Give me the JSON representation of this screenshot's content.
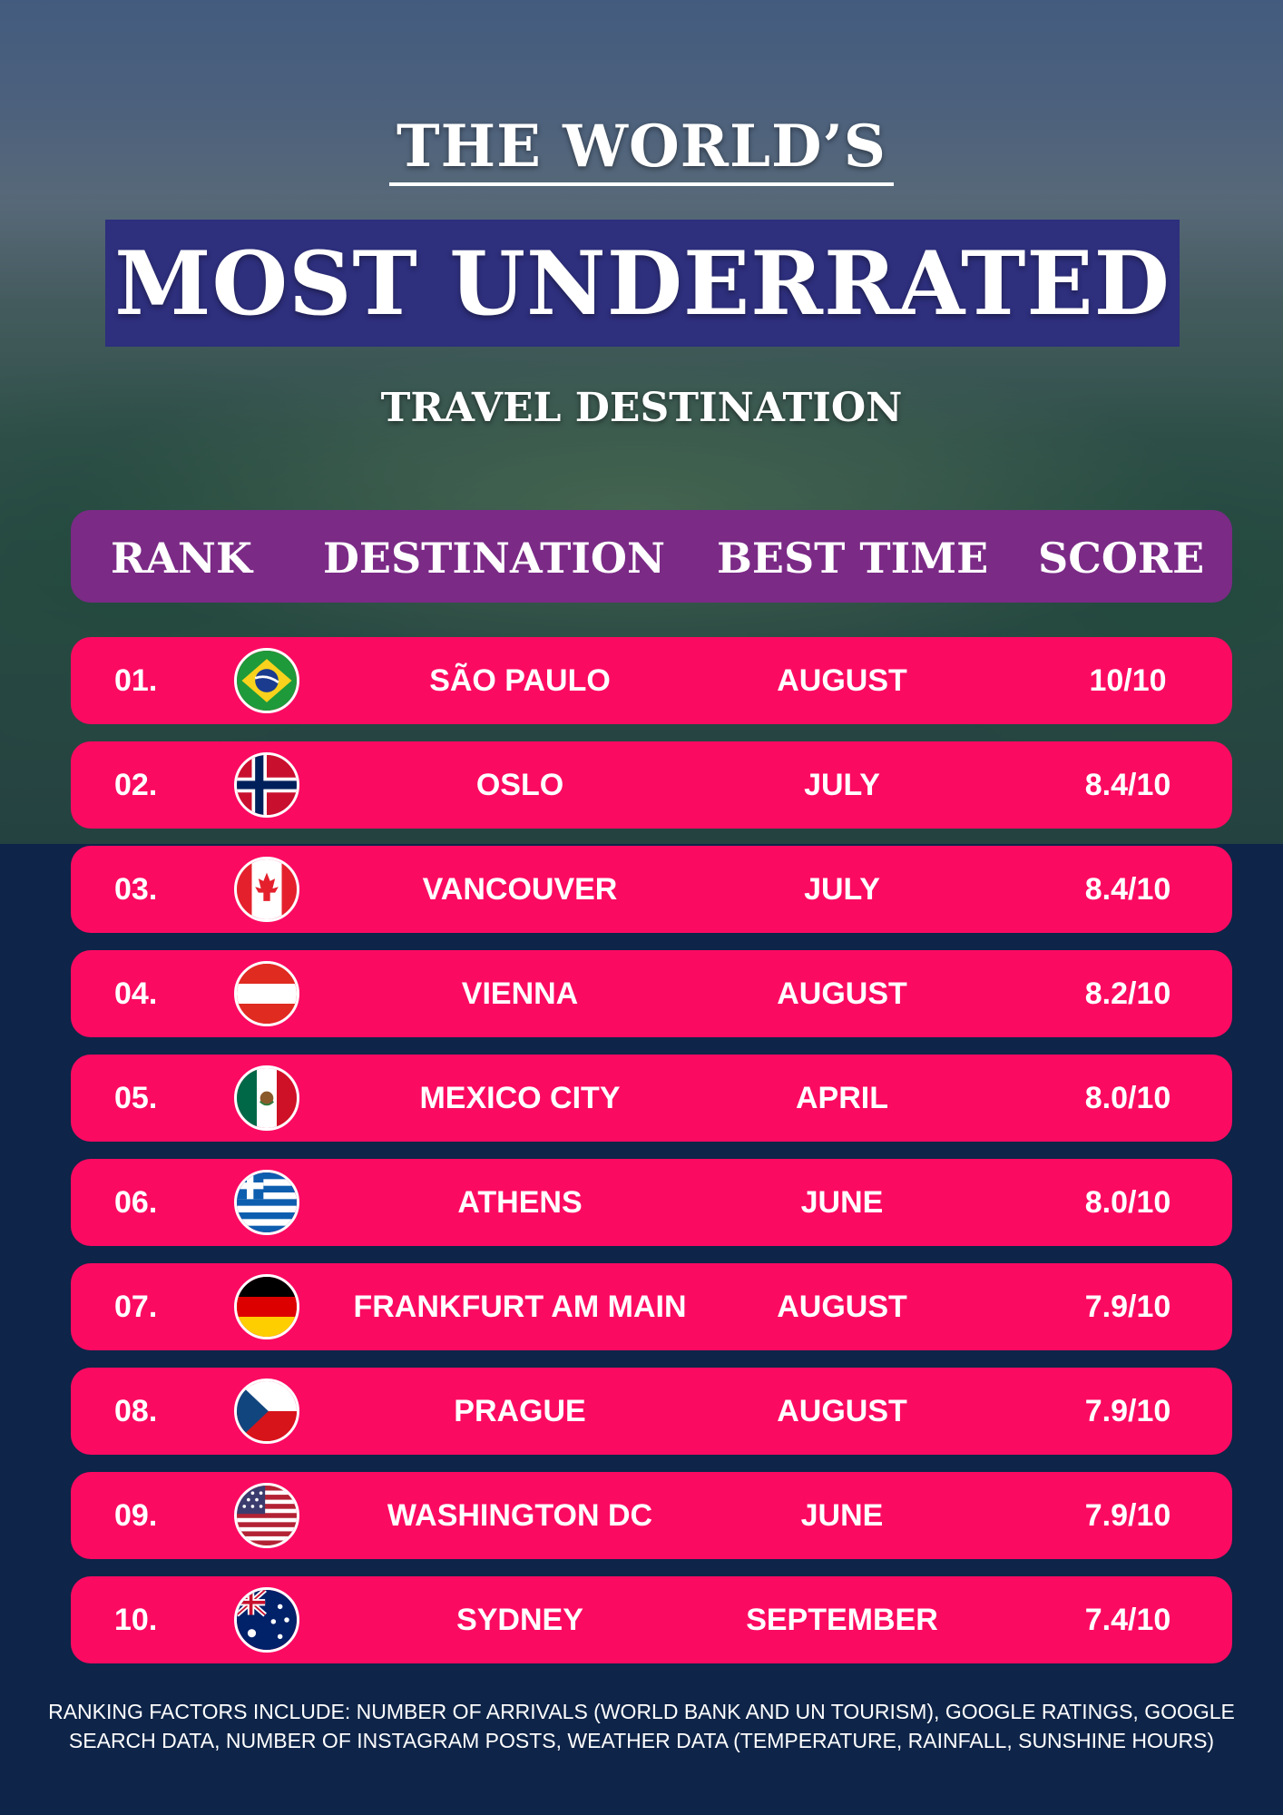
{
  "header": {
    "line1": "THE WORLD’S",
    "line2": "MOST UNDERRATED",
    "line3": "TRAVEL DESTINATION"
  },
  "columns": {
    "rank": "RANK",
    "destination": "DESTINATION",
    "best_time": "BEST TIME",
    "score": "SCORE"
  },
  "rows": [
    {
      "rank": "01.",
      "flag_icon": "brazil-flag-icon",
      "destination": "SÃO PAULO",
      "best_time": "AUGUST",
      "score": "10/10"
    },
    {
      "rank": "02.",
      "flag_icon": "norway-flag-icon",
      "destination": "OSLO",
      "best_time": "JULY",
      "score": "8.4/10"
    },
    {
      "rank": "03.",
      "flag_icon": "canada-flag-icon",
      "destination": "VANCOUVER",
      "best_time": "JULY",
      "score": "8.4/10"
    },
    {
      "rank": "04.",
      "flag_icon": "austria-flag-icon",
      "destination": "VIENNA",
      "best_time": "AUGUST",
      "score": "8.2/10"
    },
    {
      "rank": "05.",
      "flag_icon": "mexico-flag-icon",
      "destination": "MEXICO CITY",
      "best_time": "APRIL",
      "score": "8.0/10"
    },
    {
      "rank": "06.",
      "flag_icon": "greece-flag-icon",
      "destination": "ATHENS",
      "best_time": "JUNE",
      "score": "8.0/10"
    },
    {
      "rank": "07.",
      "flag_icon": "germany-flag-icon",
      "destination": "FRANKFURT AM MAIN",
      "best_time": "AUGUST",
      "score": "7.9/10"
    },
    {
      "rank": "08.",
      "flag_icon": "czech-flag-icon",
      "destination": "PRAGUE",
      "best_time": "AUGUST",
      "score": "7.9/10"
    },
    {
      "rank": "09.",
      "flag_icon": "usa-flag-icon",
      "destination": "WASHINGTON DC",
      "best_time": "JUNE",
      "score": "7.9/10"
    },
    {
      "rank": "10.",
      "flag_icon": "australia-flag-icon",
      "destination": "SYDNEY",
      "best_time": "SEPTEMBER",
      "score": "7.4/10"
    }
  ],
  "footnote": "RANKING FACTORS INCLUDE: NUMBER OF ARRIVALS (WORLD BANK AND UN TOURISM), GOOGLE RATINGS, GOOGLE SEARCH DATA, NUMBER OF INSTAGRAM POSTS, WEATHER DATA (TEMPERATURE, RAINFALL, SUNSHINE HOURS)",
  "colors": {
    "background": "#0e2448",
    "banner": "#2e2f7d",
    "header_bar": "#7b2a86",
    "row": "#fb0a62",
    "text": "#ffffff"
  }
}
